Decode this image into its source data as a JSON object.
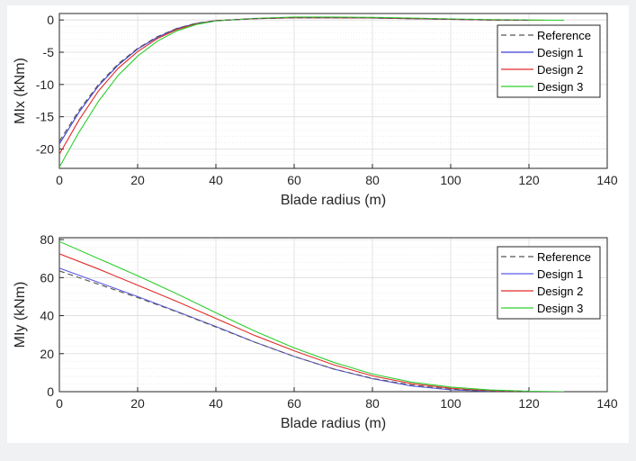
{
  "chart_data": [
    {
      "type": "line",
      "xlabel": "Blade radius (m)",
      "ylabel": "MIx (kNm)",
      "xlim": [
        0,
        140
      ],
      "ylim": [
        -23,
        1
      ],
      "xticks": [
        0,
        20,
        40,
        60,
        80,
        100,
        120,
        140
      ],
      "yticks": [
        0,
        -5,
        -10,
        -15,
        -20
      ],
      "grid": true,
      "minor_grid": true,
      "legend": "top-right",
      "series": [
        {
          "name": "Reference",
          "color": "#555555",
          "dash": true,
          "x": [
            0,
            5,
            10,
            15,
            20,
            25,
            30,
            35,
            40,
            50,
            60,
            70,
            80,
            90,
            100,
            110,
            120
          ],
          "y": [
            -18.8,
            -14.0,
            -10.0,
            -6.8,
            -4.4,
            -2.6,
            -1.3,
            -0.5,
            -0.1,
            0.2,
            0.35,
            0.35,
            0.3,
            0.2,
            0.1,
            0.0,
            -0.05
          ]
        },
        {
          "name": "Design 1",
          "color": "#3b3bd6",
          "dash": false,
          "x": [
            0,
            5,
            10,
            15,
            20,
            25,
            30,
            35,
            40,
            50,
            60,
            70,
            80,
            90,
            100,
            110,
            120
          ],
          "y": [
            -19.2,
            -14.3,
            -10.2,
            -7.0,
            -4.5,
            -2.7,
            -1.35,
            -0.55,
            -0.1,
            0.2,
            0.35,
            0.35,
            0.3,
            0.2,
            0.1,
            0.0,
            -0.05
          ]
        },
        {
          "name": "Design 2",
          "color": "#e02b2b",
          "dash": false,
          "x": [
            0,
            5,
            10,
            15,
            20,
            25,
            30,
            35,
            40,
            50,
            60,
            70,
            80,
            90,
            100,
            110,
            120,
            124
          ],
          "y": [
            -20.8,
            -15.5,
            -11.0,
            -7.5,
            -4.9,
            -2.9,
            -1.5,
            -0.6,
            -0.1,
            0.2,
            0.35,
            0.35,
            0.3,
            0.2,
            0.1,
            0.0,
            -0.05,
            -0.05
          ]
        },
        {
          "name": "Design 3",
          "color": "#2ccf2c",
          "dash": false,
          "x": [
            0,
            5,
            10,
            15,
            20,
            25,
            30,
            35,
            40,
            50,
            60,
            70,
            80,
            90,
            100,
            110,
            120,
            129
          ],
          "y": [
            -22.8,
            -17.4,
            -12.6,
            -8.6,
            -5.6,
            -3.3,
            -1.7,
            -0.7,
            -0.15,
            0.25,
            0.45,
            0.45,
            0.4,
            0.3,
            0.15,
            0.05,
            0.0,
            -0.05
          ]
        }
      ]
    },
    {
      "type": "line",
      "xlabel": "Blade radius (m)",
      "ylabel": "MIy (kNm)",
      "xlim": [
        0,
        140
      ],
      "ylim": [
        0,
        81
      ],
      "xticks": [
        0,
        20,
        40,
        60,
        80,
        100,
        120,
        140
      ],
      "yticks": [
        0,
        20,
        40,
        60,
        80
      ],
      "grid": true,
      "minor_grid": true,
      "legend": "top-right",
      "series": [
        {
          "name": "Reference",
          "color": "#555555",
          "dash": true,
          "x": [
            0,
            10,
            20,
            30,
            40,
            50,
            60,
            70,
            80,
            90,
            100,
            110,
            120
          ],
          "y": [
            63.5,
            56.5,
            49.5,
            42.0,
            34.0,
            26.0,
            18.5,
            12.0,
            7.0,
            3.5,
            1.3,
            0.3,
            0.0
          ]
        },
        {
          "name": "Design 1",
          "color": "#5b5be6",
          "dash": false,
          "x": [
            0,
            10,
            20,
            30,
            40,
            50,
            60,
            70,
            80,
            90,
            100,
            110,
            120
          ],
          "y": [
            65.0,
            57.5,
            50.0,
            42.2,
            34.3,
            26.0,
            18.5,
            12.0,
            6.8,
            3.0,
            1.0,
            0.2,
            0.0
          ]
        },
        {
          "name": "Design 2",
          "color": "#e02b2b",
          "dash": false,
          "x": [
            0,
            10,
            20,
            30,
            40,
            50,
            60,
            70,
            80,
            90,
            100,
            110,
            120,
            124
          ],
          "y": [
            72.5,
            64.5,
            56.0,
            47.5,
            38.5,
            29.5,
            21.5,
            14.2,
            8.3,
            4.2,
            1.8,
            0.5,
            0.05,
            0.0
          ]
        },
        {
          "name": "Design 3",
          "color": "#2ccf2c",
          "dash": false,
          "x": [
            0,
            10,
            20,
            30,
            40,
            50,
            60,
            70,
            80,
            90,
            100,
            110,
            120,
            129
          ],
          "y": [
            79.0,
            70.0,
            61.0,
            51.5,
            41.5,
            31.8,
            23.0,
            15.5,
            9.3,
            5.0,
            2.4,
            0.9,
            0.2,
            0.0
          ]
        }
      ]
    }
  ]
}
